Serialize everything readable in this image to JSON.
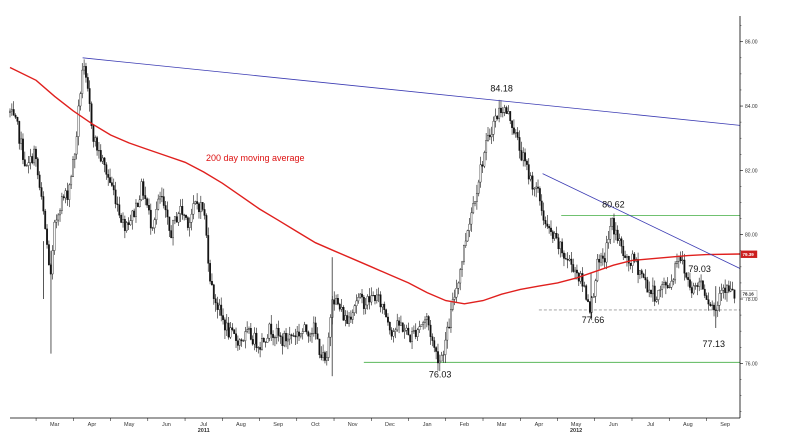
{
  "chart_data": {
    "type": "candlestick",
    "x_ticks": [
      "Mar",
      "Apr",
      "May",
      "Jun",
      "Jul",
      "Aug",
      "Sep",
      "Oct",
      "Nov",
      "Dec",
      "Jan",
      "Feb",
      "Mar",
      "Apr",
      "May",
      "Jun",
      "Jul",
      "Aug",
      "Sep"
    ],
    "year_labels": [
      {
        "label": "2011",
        "at_month": 4
      },
      {
        "label": "2012",
        "at_month": 14
      }
    ],
    "y_ticks": [
      "86.00",
      "84.00",
      "82.00",
      "80.00",
      "78.00",
      "76.00"
    ],
    "ylim": [
      74.3,
      86.8
    ],
    "x_range_months": [
      -1.2,
      18.4
    ],
    "grid": false,
    "price_path": [
      [
        -1.2,
        83.8
      ],
      [
        -1.0,
        83.3
      ],
      [
        -0.75,
        82.0
      ],
      [
        -0.55,
        82.6
      ],
      [
        -0.3,
        80.6
      ],
      [
        -0.1,
        78.6
      ],
      [
        0.0,
        80.3
      ],
      [
        0.15,
        81.0
      ],
      [
        0.35,
        81.3
      ],
      [
        0.55,
        82.6
      ],
      [
        0.75,
        85.3
      ],
      [
        0.9,
        84.3
      ],
      [
        1.05,
        83.0
      ],
      [
        1.3,
        82.2
      ],
      [
        1.6,
        81.3
      ],
      [
        1.85,
        80.3
      ],
      [
        2.1,
        80.6
      ],
      [
        2.35,
        81.5
      ],
      [
        2.6,
        80.3
      ],
      [
        2.85,
        81.2
      ],
      [
        3.1,
        80.0
      ],
      [
        3.35,
        80.8
      ],
      [
        3.6,
        80.4
      ],
      [
        3.8,
        81.0
      ],
      [
        4.0,
        80.8
      ],
      [
        4.2,
        78.4
      ],
      [
        4.45,
        77.5
      ],
      [
        4.7,
        76.9
      ],
      [
        4.95,
        76.7
      ],
      [
        5.2,
        76.9
      ],
      [
        5.5,
        76.6
      ],
      [
        5.8,
        77.1
      ],
      [
        6.1,
        76.7
      ],
      [
        6.4,
        76.9
      ],
      [
        6.7,
        77.0
      ],
      [
        6.95,
        77.1
      ],
      [
        7.15,
        76.3
      ],
      [
        7.3,
        75.9
      ],
      [
        7.45,
        78.2
      ],
      [
        7.6,
        77.8
      ],
      [
        7.85,
        77.3
      ],
      [
        8.1,
        78.0
      ],
      [
        8.35,
        77.9
      ],
      [
        8.6,
        78.1
      ],
      [
        8.85,
        77.7
      ],
      [
        9.05,
        77.0
      ],
      [
        9.3,
        77.2
      ],
      [
        9.55,
        76.8
      ],
      [
        9.8,
        77.2
      ],
      [
        10.0,
        77.4
      ],
      [
        10.2,
        76.4
      ],
      [
        10.35,
        76.1
      ],
      [
        10.5,
        76.7
      ],
      [
        10.7,
        77.9
      ],
      [
        10.9,
        79.0
      ],
      [
        11.1,
        80.3
      ],
      [
        11.3,
        81.3
      ],
      [
        11.5,
        82.4
      ],
      [
        11.75,
        83.4
      ],
      [
        12.0,
        84.0
      ],
      [
        12.25,
        83.6
      ],
      [
        12.5,
        82.6
      ],
      [
        12.75,
        81.8
      ],
      [
        13.0,
        81.2
      ],
      [
        13.2,
        80.2
      ],
      [
        13.45,
        79.8
      ],
      [
        13.7,
        79.3
      ],
      [
        13.95,
        79.0
      ],
      [
        14.2,
        78.4
      ],
      [
        14.4,
        77.7
      ],
      [
        14.55,
        79.0
      ],
      [
        14.75,
        79.2
      ],
      [
        14.95,
        80.4
      ],
      [
        15.15,
        79.8
      ],
      [
        15.35,
        79.1
      ],
      [
        15.55,
        79.2
      ],
      [
        15.75,
        78.8
      ],
      [
        15.95,
        78.3
      ],
      [
        16.15,
        78.1
      ],
      [
        16.35,
        78.4
      ],
      [
        16.55,
        78.5
      ],
      [
        16.75,
        79.5
      ],
      [
        16.95,
        78.7
      ],
      [
        17.15,
        78.3
      ],
      [
        17.35,
        78.6
      ],
      [
        17.55,
        78.0
      ],
      [
        17.75,
        77.6
      ],
      [
        17.9,
        78.5
      ],
      [
        18.05,
        78.3
      ],
      [
        18.25,
        78.1
      ]
    ],
    "moving_average": {
      "name": "200 day moving average",
      "points": [
        [
          -1.2,
          85.2
        ],
        [
          -0.5,
          84.8
        ],
        [
          0.0,
          84.3
        ],
        [
          0.5,
          83.85
        ],
        [
          1.0,
          83.45
        ],
        [
          1.5,
          83.1
        ],
        [
          2.0,
          82.85
        ],
        [
          2.5,
          82.65
        ],
        [
          3.0,
          82.45
        ],
        [
          3.5,
          82.25
        ],
        [
          4.0,
          81.95
        ],
        [
          4.5,
          81.6
        ],
        [
          5.0,
          81.2
        ],
        [
          5.5,
          80.8
        ],
        [
          6.0,
          80.45
        ],
        [
          6.5,
          80.1
        ],
        [
          7.0,
          79.75
        ],
        [
          7.5,
          79.5
        ],
        [
          8.0,
          79.25
        ],
        [
          8.5,
          79.0
        ],
        [
          9.0,
          78.75
        ],
        [
          9.5,
          78.5
        ],
        [
          10.0,
          78.2
        ],
        [
          10.5,
          77.95
        ],
        [
          11.0,
          77.85
        ],
        [
          11.5,
          77.95
        ],
        [
          12.0,
          78.15
        ],
        [
          12.5,
          78.3
        ],
        [
          13.0,
          78.4
        ],
        [
          13.5,
          78.5
        ],
        [
          14.0,
          78.65
        ],
        [
          14.5,
          78.85
        ],
        [
          15.0,
          79.05
        ],
        [
          15.5,
          79.2
        ],
        [
          16.0,
          79.25
        ],
        [
          16.5,
          79.3
        ],
        [
          17.0,
          79.35
        ],
        [
          17.5,
          79.38
        ],
        [
          18.4,
          79.4
        ]
      ]
    },
    "trendlines": [
      {
        "name": "long-term-resistance",
        "color": "#3b3bb3",
        "from": [
          0.75,
          85.5
        ],
        "to": [
          18.4,
          83.4
        ]
      },
      {
        "name": "short-term-resistance",
        "color": "#3b3bb3",
        "from": [
          13.1,
          81.9
        ],
        "to": [
          18.4,
          78.95
        ]
      }
    ],
    "horizontal_lines": [
      {
        "name": "upper-support",
        "color": "#5cb85c",
        "style": "solid",
        "y": 80.6,
        "x_from": 13.6,
        "x_to": 18.4
      },
      {
        "name": "middle-support",
        "color": "#999999",
        "style": "dashed",
        "y": 77.66,
        "x_from": 13.0,
        "x_to": 18.4
      },
      {
        "name": "lower-support",
        "color": "#5cb85c",
        "style": "solid",
        "y": 76.03,
        "x_from": 8.3,
        "x_to": 18.4
      }
    ],
    "annotations": [
      {
        "text": "84.18",
        "x": 12.0,
        "y": 84.18
      },
      {
        "text": "80.62",
        "x": 15.0,
        "y": 80.62
      },
      {
        "text": "79.03",
        "x": 17.1,
        "y": 79.03
      },
      {
        "text": "77.66",
        "x": 14.4,
        "y": 77.66
      },
      {
        "text": "77.13",
        "x": 17.75,
        "y": 77.13
      },
      {
        "text": "76.03",
        "x": 10.35,
        "y": 76.03
      }
    ],
    "ma_label_text": "200 day moving average",
    "price_tags": [
      {
        "text": "79.39",
        "y": 79.39,
        "color": "#cc1f1f",
        "text_color": "light"
      },
      {
        "text": "78.16",
        "y": 78.16,
        "color": "#ffffff",
        "text_color": "dark"
      }
    ],
    "colors": {
      "candle": "#111111",
      "moving_average": "#e0201e",
      "axis": "#000000"
    }
  }
}
